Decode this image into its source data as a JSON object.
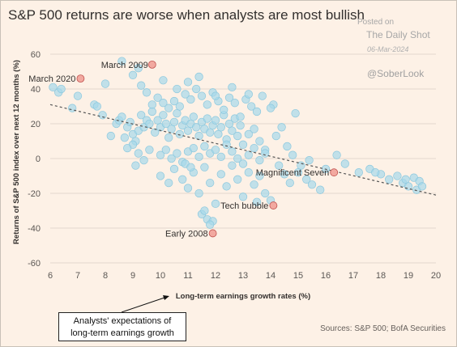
{
  "title": "S&P 500 returns are worse when analysts are most bullish",
  "watermark": {
    "posted_on": "Posted on",
    "site": "The Daily Shot",
    "date": "06-Mar-2024",
    "handle": "@SoberLook"
  },
  "callout_line1": "Analysts' expectations of",
  "callout_line2": "long-term earnings growth",
  "source": "Sources: S&P 500; BofA Securities",
  "colors": {
    "background": "#fdf1e6",
    "points": "#a7d9ea",
    "points_stroke": "#8cc8de",
    "highlight": "#f2a9a0",
    "highlight_stroke": "#c0504d",
    "trend": "#555555"
  },
  "chart_data": {
    "type": "scatter",
    "title": "S&P 500 returns are worse when analysts are most bullish",
    "xlabel": "Long-term earnings growth rates (%)",
    "ylabel": "Returns of S&P 500 index over next 12 months (%)",
    "xlim": [
      6,
      20
    ],
    "ylim": [
      -60,
      60
    ],
    "xticks": [
      6,
      7,
      8,
      9,
      10,
      11,
      12,
      13,
      14,
      15,
      16,
      17,
      18,
      19,
      20
    ],
    "yticks": [
      -60,
      -40,
      -20,
      0,
      20,
      40,
      60
    ],
    "grid": "horizontal",
    "trendline": [
      [
        6,
        31
      ],
      [
        20,
        -21
      ]
    ],
    "highlighted": [
      {
        "label": "March 2009",
        "x": 9.7,
        "y": 54
      },
      {
        "label": "March 2020",
        "x": 7.1,
        "y": 46
      },
      {
        "label": "Magnificent Seven",
        "x": 16.3,
        "y": -8
      },
      {
        "label": "Tech bubble",
        "x": 14.1,
        "y": -27
      },
      {
        "label": "Early 2008",
        "x": 11.9,
        "y": -43
      }
    ],
    "points": [
      [
        6.1,
        41
      ],
      [
        6.3,
        38
      ],
      [
        6.4,
        40
      ],
      [
        6.8,
        29
      ],
      [
        7.0,
        36
      ],
      [
        7.6,
        31
      ],
      [
        7.7,
        30
      ],
      [
        8.0,
        43
      ],
      [
        7.9,
        25
      ],
      [
        8.2,
        13
      ],
      [
        8.4,
        20
      ],
      [
        8.5,
        22
      ],
      [
        8.6,
        24
      ],
      [
        8.8,
        18
      ],
      [
        8.9,
        21
      ],
      [
        9.0,
        14
      ],
      [
        9.1,
        10
      ],
      [
        9.2,
        16
      ],
      [
        9.3,
        25
      ],
      [
        9.4,
        18
      ],
      [
        9.5,
        22
      ],
      [
        9.6,
        20
      ],
      [
        9.7,
        27
      ],
      [
        9.8,
        15
      ],
      [
        9.9,
        22
      ],
      [
        10.0,
        18
      ],
      [
        10.1,
        25
      ],
      [
        10.2,
        20
      ],
      [
        10.3,
        12
      ],
      [
        10.4,
        17
      ],
      [
        10.5,
        21
      ],
      [
        10.6,
        26
      ],
      [
        10.7,
        14
      ],
      [
        10.8,
        19
      ],
      [
        10.9,
        22
      ],
      [
        11.0,
        16
      ],
      [
        11.1,
        20
      ],
      [
        11.2,
        24
      ],
      [
        11.3,
        18
      ],
      [
        11.4,
        13
      ],
      [
        11.5,
        21
      ],
      [
        11.6,
        17
      ],
      [
        11.7,
        23
      ],
      [
        11.8,
        15
      ],
      [
        11.9,
        19
      ],
      [
        12.0,
        22
      ],
      [
        12.1,
        14
      ],
      [
        12.2,
        18
      ],
      [
        12.3,
        25
      ],
      [
        12.4,
        11
      ],
      [
        12.5,
        20
      ],
      [
        12.6,
        16
      ],
      [
        12.7,
        23
      ],
      [
        12.8,
        13
      ],
      [
        12.9,
        19
      ],
      [
        13.0,
        8
      ],
      [
        13.2,
        14
      ],
      [
        13.4,
        17
      ],
      [
        13.6,
        10
      ],
      [
        13.8,
        5
      ],
      [
        10.0,
        2
      ],
      [
        10.2,
        5
      ],
      [
        10.4,
        0
      ],
      [
        10.6,
        3
      ],
      [
        10.8,
        -2
      ],
      [
        11.0,
        4
      ],
      [
        11.2,
        6
      ],
      [
        11.4,
        1
      ],
      [
        11.6,
        7
      ],
      [
        11.8,
        3
      ],
      [
        12.0,
        5
      ],
      [
        12.2,
        1
      ],
      [
        12.4,
        8
      ],
      [
        12.6,
        4
      ],
      [
        12.8,
        0
      ],
      [
        13.0,
        -3
      ],
      [
        13.2,
        2
      ],
      [
        13.4,
        6
      ],
      [
        13.6,
        -1
      ],
      [
        13.8,
        3
      ],
      [
        10.0,
        -10
      ],
      [
        10.3,
        -14
      ],
      [
        10.5,
        -6
      ],
      [
        10.8,
        -12
      ],
      [
        11.0,
        -17
      ],
      [
        11.2,
        -8
      ],
      [
        11.4,
        -20
      ],
      [
        11.6,
        -5
      ],
      [
        11.8,
        -14
      ],
      [
        12.0,
        -26
      ],
      [
        12.2,
        -9
      ],
      [
        12.4,
        -16
      ],
      [
        12.6,
        -4
      ],
      [
        12.8,
        -12
      ],
      [
        13.0,
        -22
      ],
      [
        13.2,
        -8
      ],
      [
        13.4,
        -15
      ],
      [
        13.6,
        -10
      ],
      [
        13.8,
        -20
      ],
      [
        14.0,
        -24
      ],
      [
        11.5,
        -32
      ],
      [
        11.7,
        -35
      ],
      [
        11.9,
        -36
      ],
      [
        11.6,
        -30
      ],
      [
        11.8,
        -38
      ],
      [
        10.9,
        -3
      ],
      [
        11.1,
        -5
      ],
      [
        9.6,
        5
      ],
      [
        9.4,
        -1
      ],
      [
        9.2,
        3
      ],
      [
        9.0,
        8
      ],
      [
        8.8,
        6
      ],
      [
        9.1,
        -4
      ],
      [
        8.7,
        12
      ],
      [
        14.2,
        13
      ],
      [
        14.4,
        18
      ],
      [
        14.6,
        7
      ],
      [
        14.8,
        2
      ],
      [
        14.3,
        -4
      ],
      [
        14.5,
        -9
      ],
      [
        14.7,
        -14
      ],
      [
        15.0,
        -8
      ],
      [
        15.3,
        -12
      ],
      [
        15.5,
        -15
      ],
      [
        15.8,
        -18
      ],
      [
        15.4,
        -1
      ],
      [
        14.9,
        26
      ],
      [
        14.1,
        31
      ],
      [
        14.0,
        29
      ],
      [
        13.7,
        36
      ],
      [
        13.5,
        27
      ],
      [
        13.3,
        30
      ],
      [
        13.1,
        34
      ],
      [
        12.9,
        24
      ],
      [
        12.7,
        32
      ],
      [
        12.5,
        35
      ],
      [
        12.3,
        28
      ],
      [
        12.1,
        33
      ],
      [
        11.9,
        38
      ],
      [
        11.7,
        31
      ],
      [
        11.5,
        36
      ],
      [
        11.3,
        40
      ],
      [
        11.1,
        34
      ],
      [
        10.9,
        37
      ],
      [
        10.7,
        30
      ],
      [
        10.5,
        33
      ],
      [
        10.3,
        29
      ],
      [
        10.1,
        32
      ],
      [
        9.9,
        35
      ],
      [
        9.7,
        31
      ],
      [
        9.5,
        38
      ],
      [
        9.3,
        42
      ],
      [
        9.0,
        48
      ],
      [
        8.6,
        56
      ],
      [
        9.2,
        52
      ],
      [
        10.1,
        45
      ],
      [
        10.6,
        40
      ],
      [
        11.0,
        44
      ],
      [
        11.4,
        47
      ],
      [
        12.0,
        36
      ],
      [
        12.6,
        41
      ],
      [
        13.2,
        37
      ],
      [
        16.4,
        2
      ],
      [
        16.7,
        -3
      ],
      [
        17.2,
        -8
      ],
      [
        17.6,
        -6
      ],
      [
        18.0,
        -9
      ],
      [
        18.3,
        -12
      ],
      [
        18.6,
        -10
      ],
      [
        18.8,
        -14
      ],
      [
        19.0,
        -16
      ],
      [
        19.2,
        -11
      ],
      [
        19.3,
        -18
      ],
      [
        19.4,
        -13
      ],
      [
        19.5,
        -16
      ],
      [
        16.0,
        -6
      ],
      [
        17.8,
        -8
      ],
      [
        18.9,
        -12
      ],
      [
        15.1,
        -4
      ],
      [
        13.5,
        -25
      ]
    ]
  }
}
